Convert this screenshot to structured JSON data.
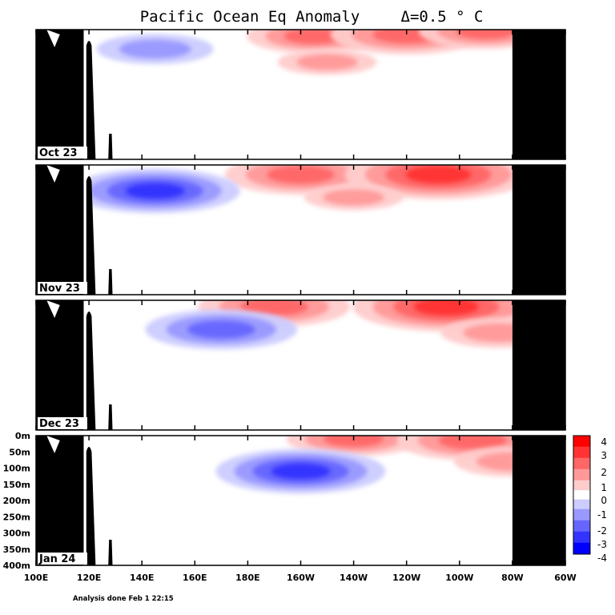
{
  "chart_data": {
    "type": "heatmap",
    "title": "Pacific Ocean Eq Anomaly",
    "contour_interval_label": "Δ=0.5 ° C",
    "footnote": "Analysis done Feb 1 22:15",
    "xlabel": "",
    "ylabel": "",
    "x_ticks": [
      "100E",
      "120E",
      "140E",
      "160E",
      "180E",
      "160W",
      "140W",
      "120W",
      "100W",
      "80W",
      "60W"
    ],
    "x_range_deg_east": [
      100,
      300
    ],
    "y_ticks": [
      "0m",
      "50m",
      "100m",
      "150m",
      "200m",
      "250m",
      "300m",
      "350m",
      "400m"
    ],
    "y_range_m": [
      0,
      400
    ],
    "colorbar": {
      "labels": [
        "4",
        "3",
        "2",
        "1",
        "0",
        "-1",
        "-2",
        "-3",
        "-4"
      ],
      "colors": [
        "#ff0000",
        "#ff3333",
        "#ff6666",
        "#ff9999",
        "#ffcccc",
        "#ffffff",
        "#ccccff",
        "#9999ff",
        "#6666ff",
        "#3333ff",
        "#0000ff"
      ]
    },
    "panels": [
      {
        "label": "Oct 23",
        "anomalies": [
          {
            "lon": 205,
            "depth": 20,
            "value": 2.0
          },
          {
            "lon": 240,
            "depth": 15,
            "value": 2.5
          },
          {
            "lon": 270,
            "depth": 5,
            "value": 2.0
          },
          {
            "lon": 145,
            "depth": 60,
            "value": -1.5
          },
          {
            "lon": 210,
            "depth": 100,
            "value": 1.0
          }
        ]
      },
      {
        "label": "Nov 23",
        "anomalies": [
          {
            "lon": 200,
            "depth": 30,
            "value": 2.5
          },
          {
            "lon": 252,
            "depth": 30,
            "value": 3.5
          },
          {
            "lon": 145,
            "depth": 80,
            "value": -3.0
          },
          {
            "lon": 220,
            "depth": 100,
            "value": 1.0
          }
        ]
      },
      {
        "label": "Dec 23",
        "anomalies": [
          {
            "lon": 190,
            "depth": 20,
            "value": 2.5
          },
          {
            "lon": 255,
            "depth": 20,
            "value": 3.5
          },
          {
            "lon": 170,
            "depth": 90,
            "value": -2.5
          },
          {
            "lon": 275,
            "depth": 100,
            "value": 1.5
          }
        ]
      },
      {
        "label": "Jan 24",
        "anomalies": [
          {
            "lon": 220,
            "depth": 10,
            "value": 2.0
          },
          {
            "lon": 265,
            "depth": 15,
            "value": 2.5
          },
          {
            "lon": 200,
            "depth": 110,
            "value": -3.0
          },
          {
            "lon": 280,
            "depth": 80,
            "value": 1.5
          }
        ]
      }
    ]
  }
}
